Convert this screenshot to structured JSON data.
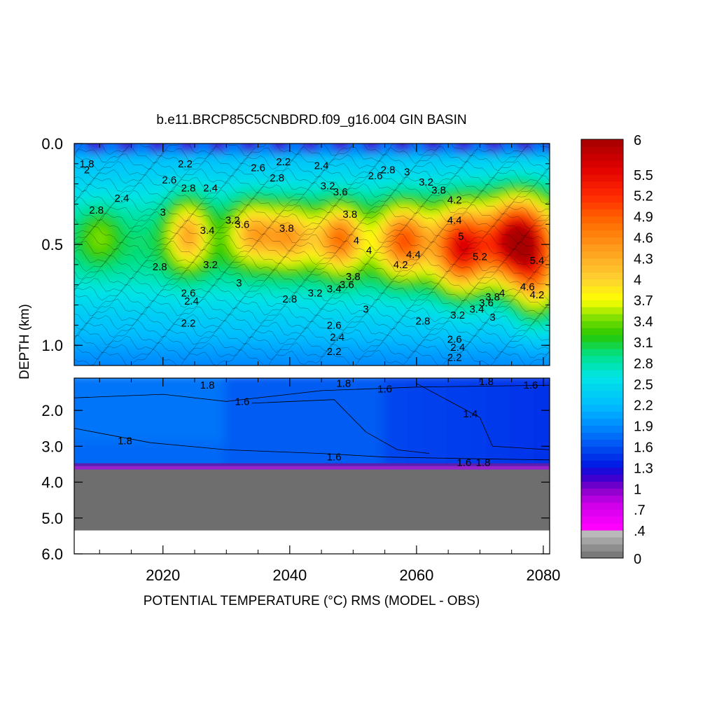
{
  "chart_data": {
    "type": "heatmap",
    "title": "b.e11.BRCP85C5CNBDRD.f09_g16.004 GIN BASIN",
    "xlabel": "POTENTIAL TEMPERATURE (°C) RMS (MODEL - OBS)",
    "ylabel": "DEPTH (km)",
    "xlim": [
      2006,
      2081
    ],
    "x_ticks": [
      "2020",
      "2040",
      "2060",
      "2080"
    ],
    "upper_panel": {
      "ylim": [
        0.0,
        1.1
      ],
      "y_ticks": [
        "0.0",
        "0.5",
        "1.0"
      ],
      "max_center": {
        "year": 2075,
        "depth_km": 0.48,
        "value": 5.6
      },
      "contour_labels": [
        {
          "text": "1.8",
          "year": 2008,
          "depth": 0.1
        },
        {
          "text": "2",
          "year": 2008,
          "depth": 0.13
        },
        {
          "text": "2.8",
          "year": 2009.5,
          "depth": 0.33
        },
        {
          "text": "2.4",
          "year": 2013.5,
          "depth": 0.27
        },
        {
          "text": "2.2",
          "year": 2023.5,
          "depth": 0.1
        },
        {
          "text": "2.6",
          "year": 2021,
          "depth": 0.18
        },
        {
          "text": "2.8",
          "year": 2024,
          "depth": 0.22
        },
        {
          "text": "2.4",
          "year": 2027.5,
          "depth": 0.22
        },
        {
          "text": "3",
          "year": 2020,
          "depth": 0.34
        },
        {
          "text": "3.4",
          "year": 2027,
          "depth": 0.43
        },
        {
          "text": "3.2",
          "year": 2027.5,
          "depth": 0.6
        },
        {
          "text": "2.8",
          "year": 2019.5,
          "depth": 0.61
        },
        {
          "text": "3.2",
          "year": 2031,
          "depth": 0.38
        },
        {
          "text": "3.6",
          "year": 2032.5,
          "depth": 0.4
        },
        {
          "text": "2.6",
          "year": 2035,
          "depth": 0.12
        },
        {
          "text": "2.8",
          "year": 2038,
          "depth": 0.17
        },
        {
          "text": "2.2",
          "year": 2039,
          "depth": 0.09
        },
        {
          "text": "3.8",
          "year": 2039.5,
          "depth": 0.42
        },
        {
          "text": "3",
          "year": 2032,
          "depth": 0.69
        },
        {
          "text": "2.4",
          "year": 2045,
          "depth": 0.11
        },
        {
          "text": "3.2",
          "year": 2046,
          "depth": 0.21
        },
        {
          "text": "3.6",
          "year": 2048,
          "depth": 0.24
        },
        {
          "text": "3.8",
          "year": 2049.5,
          "depth": 0.35
        },
        {
          "text": "4",
          "year": 2050.5,
          "depth": 0.48
        },
        {
          "text": "4",
          "year": 2052.5,
          "depth": 0.53
        },
        {
          "text": "2.6",
          "year": 2053.5,
          "depth": 0.16
        },
        {
          "text": "2.8",
          "year": 2055.5,
          "depth": 0.13
        },
        {
          "text": "3",
          "year": 2058.5,
          "depth": 0.14
        },
        {
          "text": "3.2",
          "year": 2061.5,
          "depth": 0.19
        },
        {
          "text": "3.8",
          "year": 2063.5,
          "depth": 0.23
        },
        {
          "text": "4.2",
          "year": 2066,
          "depth": 0.28
        },
        {
          "text": "4.4",
          "year": 2066,
          "depth": 0.38
        },
        {
          "text": "5",
          "year": 2067,
          "depth": 0.46
        },
        {
          "text": "4.2",
          "year": 2057.5,
          "depth": 0.6
        },
        {
          "text": "4.4",
          "year": 2059.5,
          "depth": 0.55
        },
        {
          "text": "5.2",
          "year": 2070,
          "depth": 0.56
        },
        {
          "text": "5.4",
          "year": 2079,
          "depth": 0.58
        },
        {
          "text": "3.8",
          "year": 2050,
          "depth": 0.66
        },
        {
          "text": "3.6",
          "year": 2049,
          "depth": 0.7
        },
        {
          "text": "3.4",
          "year": 2047,
          "depth": 0.72
        },
        {
          "text": "3.2",
          "year": 2044,
          "depth": 0.74
        },
        {
          "text": "2.8",
          "year": 2040,
          "depth": 0.77
        },
        {
          "text": "3",
          "year": 2052,
          "depth": 0.82
        },
        {
          "text": "2.6",
          "year": 2024,
          "depth": 0.74
        },
        {
          "text": "2.4",
          "year": 2024.5,
          "depth": 0.78
        },
        {
          "text": "2.2",
          "year": 2024,
          "depth": 0.89
        },
        {
          "text": "2.6",
          "year": 2047,
          "depth": 0.9
        },
        {
          "text": "2.4",
          "year": 2047.5,
          "depth": 0.96
        },
        {
          "text": "2.2",
          "year": 2047,
          "depth": 1.03
        },
        {
          "text": "2.8",
          "year": 2061,
          "depth": 0.88
        },
        {
          "text": "3.2",
          "year": 2066.5,
          "depth": 0.85
        },
        {
          "text": "3.4",
          "year": 2069.5,
          "depth": 0.82
        },
        {
          "text": "3.6",
          "year": 2071,
          "depth": 0.79
        },
        {
          "text": "3.8",
          "year": 2072,
          "depth": 0.76
        },
        {
          "text": "4",
          "year": 2073.5,
          "depth": 0.74
        },
        {
          "text": "3",
          "year": 2072,
          "depth": 0.86
        },
        {
          "text": "4.6",
          "year": 2077.5,
          "depth": 0.71
        },
        {
          "text": "4.2",
          "year": 2079,
          "depth": 0.75
        },
        {
          "text": "2.6",
          "year": 2066,
          "depth": 0.97
        },
        {
          "text": "2.4",
          "year": 2066.5,
          "depth": 1.01
        },
        {
          "text": "2.2",
          "year": 2066,
          "depth": 1.06
        }
      ]
    },
    "lower_panel": {
      "ylim": [
        1.1,
        6.0
      ],
      "y_ticks": [
        "2.0",
        "3.0",
        "4.0",
        "5.0",
        "6.0"
      ],
      "bottom_depth_km": 3.65,
      "data_limit_depth_km": 5.35,
      "contour_labels": [
        {
          "text": "1.8",
          "year": 2027,
          "depth": 1.3
        },
        {
          "text": "1.6",
          "year": 2032.5,
          "depth": 1.75
        },
        {
          "text": "1.8",
          "year": 2048.5,
          "depth": 1.25
        },
        {
          "text": "1.6",
          "year": 2055,
          "depth": 1.4
        },
        {
          "text": "1.8",
          "year": 2071,
          "depth": 1.2
        },
        {
          "text": "1.6",
          "year": 2078,
          "depth": 1.3
        },
        {
          "text": "1.4",
          "year": 2068.5,
          "depth": 2.1
        },
        {
          "text": "1.8",
          "year": 2014,
          "depth": 2.85
        },
        {
          "text": "1.6",
          "year": 2047,
          "depth": 3.3
        },
        {
          "text": "1.6",
          "year": 2067.5,
          "depth": 3.45
        },
        {
          "text": "1.8",
          "year": 2070.5,
          "depth": 3.45
        }
      ]
    },
    "colorbar": {
      "min": 0,
      "max": 6,
      "step": 0.1,
      "tick_labels": [
        "0",
        ".4",
        ".7",
        "1",
        "1.3",
        "1.6",
        "1.9",
        "2.2",
        "2.5",
        "2.8",
        "3.1",
        "3.4",
        "3.7",
        "4",
        "4.3",
        "4.6",
        "4.9",
        "5.2",
        "5.5",
        "6"
      ],
      "tick_values": [
        0,
        0.4,
        0.7,
        1.0,
        1.3,
        1.6,
        1.9,
        2.2,
        2.5,
        2.8,
        3.1,
        3.4,
        3.7,
        4.0,
        4.3,
        4.6,
        4.9,
        5.2,
        5.5,
        6.0
      ]
    }
  }
}
